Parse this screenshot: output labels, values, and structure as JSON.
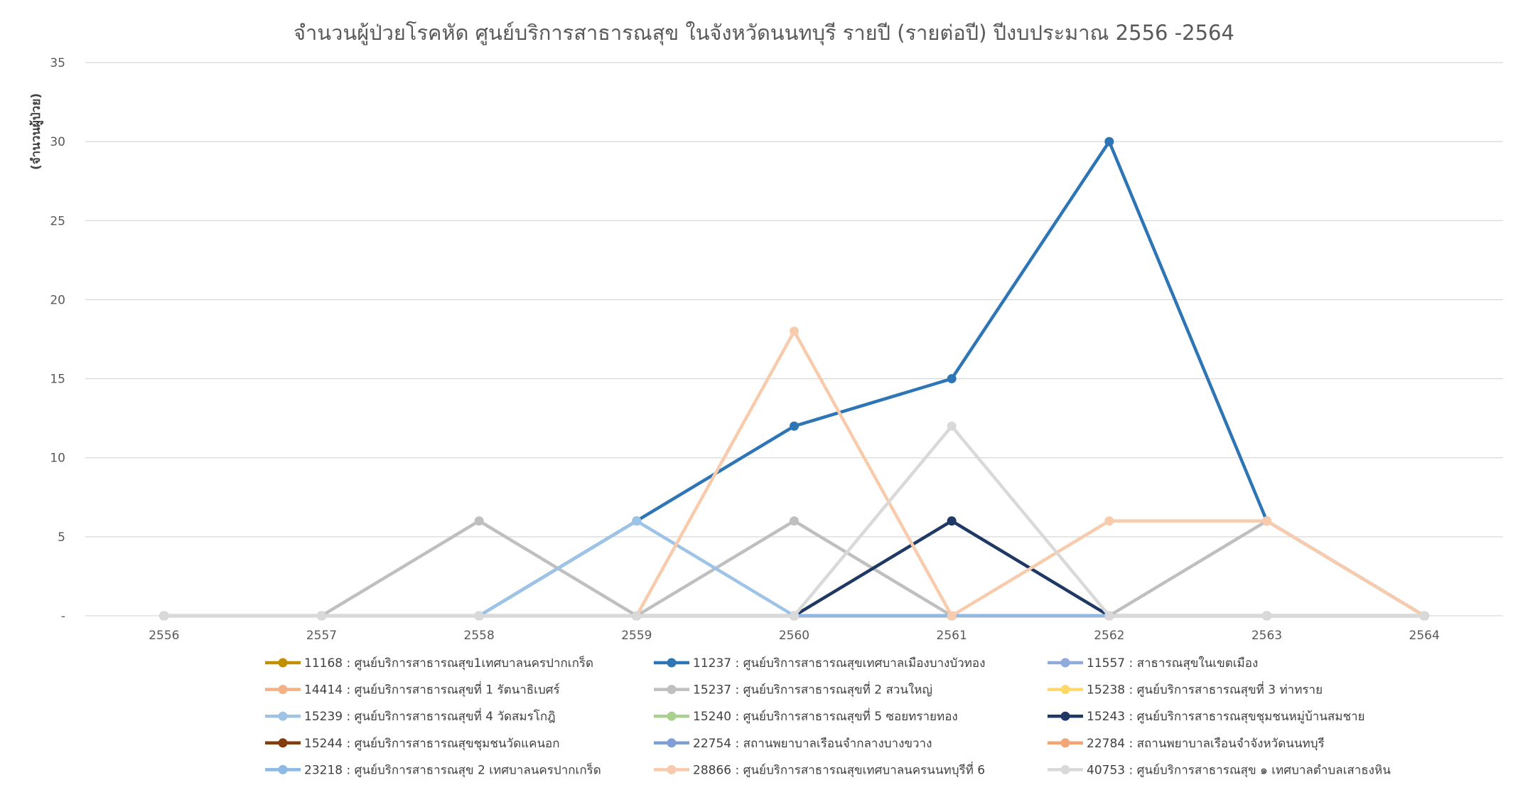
{
  "chart_data": {
    "type": "line",
    "title": "จำนวนผู้ป่วยโรคหัด ศูนย์บริการสาธารณสุข ในจังหวัดนนทบุรี รายปี (รายต่อปี) ปีงบประมาณ 2556 -2564",
    "ylabel": "(จำนวนผู้ป่วย)",
    "xlabel": "",
    "x": [
      "2556",
      "2557",
      "2558",
      "2559",
      "2560",
      "2561",
      "2562",
      "2563",
      "2564"
    ],
    "yticks": [
      "-",
      "5",
      "10",
      "15",
      "20",
      "25",
      "30",
      "35"
    ],
    "ylim": [
      0,
      35
    ],
    "grid": true,
    "legend_position": "bottom",
    "series": [
      {
        "name": "11168 : ศูนย์บริการสาธารณสุข1เทศบาลนครปากเกร็ด",
        "color": "#bf9000",
        "values": [
          0,
          0,
          0,
          0,
          0,
          0,
          0,
          0,
          0
        ]
      },
      {
        "name": "11237 : ศูนย์บริการสาธารณสุขเทศบาลเมืองบางบัวทอง",
        "color": "#2e75b6",
        "values": [
          0,
          0,
          0,
          6,
          12,
          15,
          30,
          6,
          0
        ]
      },
      {
        "name": "11557 : สาธารณสุขในเขตเมือง",
        "color": "#8faadc",
        "values": [
          0,
          0,
          0,
          0,
          0,
          0,
          0,
          0,
          0
        ]
      },
      {
        "name": "14414 : ศูนย์บริการสาธารณสุขที่ 1 รัตนาธิเบศร์",
        "color": "#f4b183",
        "values": [
          0,
          0,
          0,
          0,
          0,
          0,
          0,
          0,
          0
        ]
      },
      {
        "name": "15237 : ศูนย์บริการสาธารณสุขที่ 2 สวนใหญ่",
        "color": "#bfbfbf",
        "values": [
          0,
          0,
          6,
          0,
          6,
          0,
          0,
          6,
          0
        ]
      },
      {
        "name": "15238 : ศูนย์บริการสาธารณสุขที่ 3 ท่าทราย",
        "color": "#ffd966",
        "values": [
          0,
          0,
          0,
          0,
          0,
          0,
          0,
          0,
          0
        ]
      },
      {
        "name": "15239 : ศูนย์บริการสาธารณสุขที่ 4 วัดสมรโกฎิ",
        "color": "#9dc3e6",
        "values": [
          0,
          0,
          0,
          6,
          0,
          0,
          0,
          0,
          0
        ]
      },
      {
        "name": "15240 : ศูนย์บริการสาธารณสุขที่ 5 ซอยทรายทอง",
        "color": "#a9d18e",
        "values": [
          0,
          0,
          0,
          0,
          0,
          0,
          0,
          0,
          0
        ]
      },
      {
        "name": "15243 : ศูนย์บริการสาธารณสุขชุมชนหมู่บ้านสมชาย",
        "color": "#1f3864",
        "values": [
          0,
          0,
          0,
          0,
          0,
          6,
          0,
          0,
          0
        ]
      },
      {
        "name": "15244 : ศูนย์บริการสาธารณสุขชุมชนวัดแคนอก",
        "color": "#843c0c",
        "values": [
          0,
          0,
          0,
          0,
          0,
          0,
          0,
          0,
          0
        ]
      },
      {
        "name": "22754 : สถานพยาบาลเรือนจำกลางบางขวาง",
        "color": "#7f9fd6",
        "values": [
          0,
          0,
          0,
          0,
          0,
          0,
          0,
          0,
          0
        ]
      },
      {
        "name": "22784 : สถานพยาบาลเรือนจำจังหวัดนนทบุรี",
        "color": "#f4a576",
        "values": [
          0,
          0,
          0,
          0,
          0,
          0,
          0,
          0,
          0
        ]
      },
      {
        "name": "23218 : ศูนย์บริการสาธารณสุข 2 เทศบาลนครปากเกร็ด",
        "color": "#8db9e4",
        "values": [
          0,
          0,
          0,
          0,
          0,
          0,
          0,
          0,
          0
        ]
      },
      {
        "name": "28866 : ศูนย์บริการสาธารณสุขเทศบาลนครนนทบุรีที่ 6",
        "color": "#f8cbad",
        "values": [
          0,
          0,
          0,
          0,
          18,
          0,
          6,
          6,
          0
        ]
      },
      {
        "name": "40753 : ศูนย์บริการสาธารณสุข ๑ เทศบาลตำบลเสาธงหิน",
        "color": "#d9d9d9",
        "values": [
          0,
          0,
          0,
          0,
          0,
          12,
          0,
          0,
          0
        ]
      }
    ]
  }
}
